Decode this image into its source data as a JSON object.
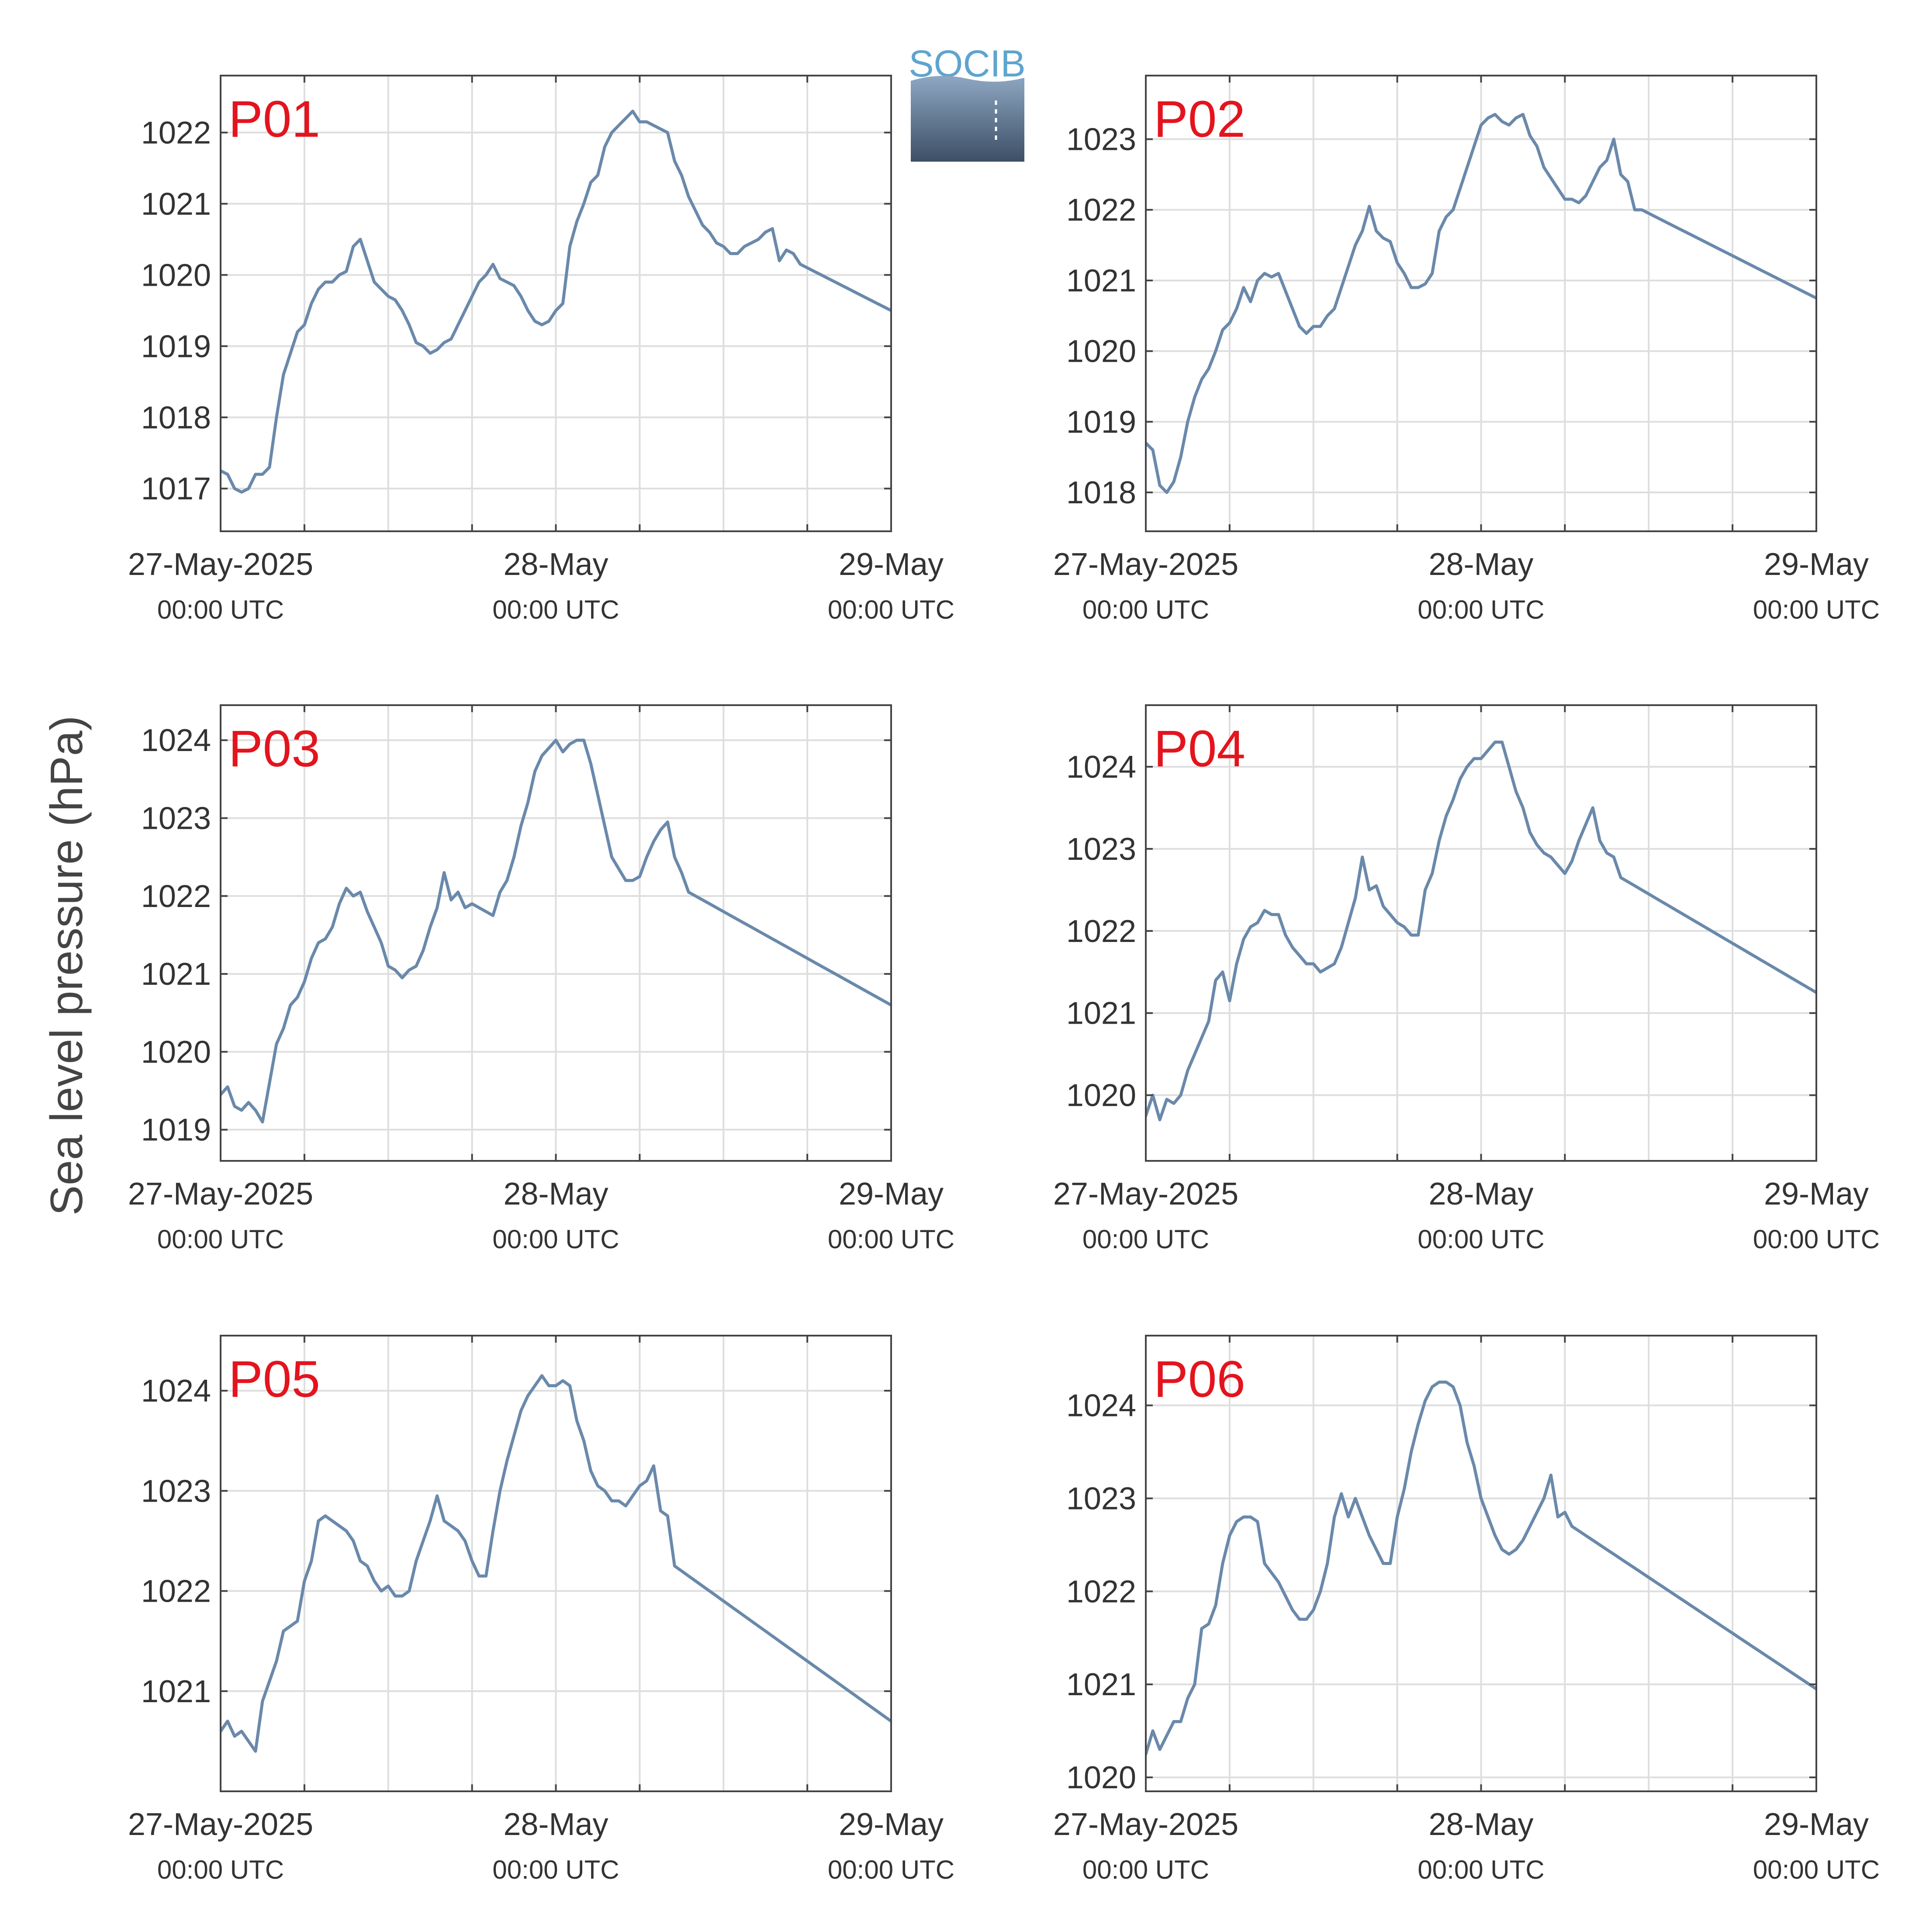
{
  "figure": {
    "ylabel": "Sea level pressure (hPa)",
    "logo_text": "SOCIB",
    "line_color": "#6a89ab",
    "label_color": "#e3141e",
    "x_ticks": [
      {
        "x": 0,
        "main": "27-May-2025",
        "sub": "00:00 UTC"
      },
      {
        "x": 24,
        "main": "28-May",
        "sub": "00:00 UTC"
      },
      {
        "x": 48,
        "main": "29-May",
        "sub": "00:00 UTC"
      }
    ]
  },
  "chart_data": [
    {
      "type": "line",
      "label": "P01",
      "xlim": [
        0,
        48
      ],
      "ylim": [
        1016.4,
        1022.8
      ],
      "yticks": [
        1017,
        1018,
        1019,
        1020,
        1021,
        1022
      ],
      "x": [
        0,
        0.5,
        1,
        1.5,
        2,
        2.5,
        3,
        3.5,
        4,
        4.5,
        5,
        5.5,
        6,
        6.5,
        7,
        7.5,
        8,
        8.5,
        9,
        9.5,
        10,
        10.5,
        11,
        11.5,
        12,
        12.5,
        13,
        13.5,
        14,
        14.5,
        15,
        15.5,
        16,
        16.5,
        17,
        17.5,
        18,
        18.5,
        19,
        19.5,
        20,
        20.5,
        21,
        21.5,
        22,
        22.5,
        23,
        23.5,
        24,
        24.5,
        25,
        25.5,
        26,
        26.5,
        27,
        27.5,
        28,
        28.5,
        29,
        29.5,
        30,
        30.5,
        31,
        31.5,
        32,
        32.5,
        33,
        33.5,
        34,
        34.5,
        35,
        35.5,
        36,
        36.5,
        37,
        37.5,
        38,
        38.5,
        39,
        39.5,
        40,
        40.5,
        41,
        41.5,
        42,
        42.5,
        43,
        43.5,
        44,
        44.5,
        45,
        45.5,
        46,
        46.5,
        47,
        47.5,
        48
      ],
      "y": [
        1017.25,
        1017.2,
        1017.0,
        1016.95,
        1017.0,
        1017.2,
        1017.2,
        1017.3,
        1018.0,
        1018.6,
        1018.9,
        1019.2,
        1019.3,
        1019.6,
        1019.8,
        1019.9,
        1019.9,
        1020.0,
        1020.05,
        1020.4,
        1020.5,
        1020.2,
        1019.9,
        1019.8,
        1019.7,
        1019.65,
        1019.5,
        1019.3,
        1019.05,
        1019.0,
        1018.9,
        1018.95,
        1019.05,
        1019.1,
        1019.3,
        1019.5,
        1019.7,
        1019.9,
        1020.0,
        1020.15,
        1019.95,
        1019.9,
        1019.85,
        1019.7,
        1019.5,
        1019.35,
        1019.3,
        1019.35,
        1019.5,
        1019.6,
        1020.4,
        1020.75,
        1021.0,
        1021.3,
        1021.4,
        1021.8,
        1022.0,
        1022.1,
        1022.2,
        1022.3,
        1022.15,
        1022.15,
        1022.1,
        1022.05,
        1022.0,
        1021.6,
        1021.4,
        1021.1,
        1020.9,
        1020.7,
        1020.6,
        1020.45,
        1020.4,
        1020.3,
        1020.3,
        1020.4,
        1020.45,
        1020.5,
        1020.6,
        1020.65,
        1020.2,
        1020.35,
        1020.3,
        1020.15,
        1020.1,
        1020.05,
        1020.0,
        1019.95,
        1019.9,
        1019.85,
        1019.8,
        1019.75,
        1019.7,
        1019.65,
        1019.6,
        1019.55,
        1019.5
      ]
    },
    {
      "type": "line",
      "label": "P02",
      "xlim": [
        0,
        48
      ],
      "ylim": [
        1017.45,
        1023.9
      ],
      "yticks": [
        1018,
        1019,
        1020,
        1021,
        1022,
        1023
      ],
      "x": [
        0,
        0.5,
        1,
        1.5,
        2,
        2.5,
        3,
        3.5,
        4,
        4.5,
        5,
        5.5,
        6,
        6.5,
        7,
        7.5,
        8,
        8.5,
        9,
        9.5,
        10,
        10.5,
        11,
        11.5,
        12,
        12.5,
        13,
        13.5,
        14,
        14.5,
        15,
        15.5,
        16,
        16.5,
        17,
        17.5,
        18,
        18.5,
        19,
        19.5,
        20,
        20.5,
        21,
        21.5,
        22,
        22.5,
        23,
        23.5,
        24,
        24.5,
        25,
        25.5,
        26,
        26.5,
        27,
        27.5,
        28,
        28.5,
        29,
        29.5,
        30,
        30.5,
        31,
        31.5,
        32,
        32.5,
        33,
        33.5,
        34,
        34.5,
        35,
        35.5,
        36,
        36.5,
        37,
        37.5,
        38,
        38.5,
        39,
        39.5,
        40,
        40.5,
        41,
        41.5,
        42,
        42.5,
        43,
        43.5,
        44,
        44.5,
        45,
        45.5,
        46,
        46.5,
        47,
        47.5,
        48
      ],
      "y": [
        1018.7,
        1018.6,
        1018.1,
        1018.0,
        1018.15,
        1018.5,
        1019.0,
        1019.35,
        1019.6,
        1019.75,
        1020.0,
        1020.3,
        1020.4,
        1020.6,
        1020.9,
        1020.7,
        1021.0,
        1021.1,
        1021.05,
        1021.1,
        1020.85,
        1020.6,
        1020.35,
        1020.25,
        1020.35,
        1020.35,
        1020.5,
        1020.6,
        1020.9,
        1021.2,
        1021.5,
        1021.7,
        1022.05,
        1021.7,
        1021.6,
        1021.55,
        1021.25,
        1021.1,
        1020.9,
        1020.9,
        1020.95,
        1021.1,
        1021.7,
        1021.9,
        1022.0,
        1022.3,
        1022.6,
        1022.9,
        1023.2,
        1023.3,
        1023.35,
        1023.25,
        1023.2,
        1023.3,
        1023.35,
        1023.05,
        1022.9,
        1022.6,
        1022.45,
        1022.3,
        1022.15,
        1022.15,
        1022.1,
        1022.2,
        1022.4,
        1022.6,
        1022.7,
        1023.0,
        1022.5,
        1022.4,
        1022.0,
        1022.0,
        1021.95,
        1021.9,
        1021.85,
        1021.8,
        1021.75,
        1021.7,
        1021.65,
        1021.6,
        1021.55,
        1021.5,
        1021.45,
        1021.4,
        1021.35,
        1021.3,
        1021.25,
        1021.2,
        1021.15,
        1021.1,
        1021.05,
        1021.0,
        1020.95,
        1020.9,
        1020.85,
        1020.8,
        1020.75
      ]
    },
    {
      "type": "line",
      "label": "P03",
      "xlim": [
        0,
        48
      ],
      "ylim": [
        1018.6,
        1024.45
      ],
      "yticks": [
        1019,
        1020,
        1021,
        1022,
        1023,
        1024
      ],
      "x": [
        0,
        0.5,
        1,
        1.5,
        2,
        2.5,
        3,
        3.5,
        4,
        4.5,
        5,
        5.5,
        6,
        6.5,
        7,
        7.5,
        8,
        8.5,
        9,
        9.5,
        10,
        10.5,
        11,
        11.5,
        12,
        12.5,
        13,
        13.5,
        14,
        14.5,
        15,
        15.5,
        16,
        16.5,
        17,
        17.5,
        18,
        18.5,
        19,
        19.5,
        20,
        20.5,
        21,
        21.5,
        22,
        22.5,
        23,
        23.5,
        24,
        24.5,
        25,
        25.5,
        26,
        26.5,
        27,
        27.5,
        28,
        28.5,
        29,
        29.5,
        30,
        30.5,
        31,
        31.5,
        32,
        32.5,
        33,
        33.5,
        34,
        34.5,
        35,
        35.5,
        36,
        36.5,
        37,
        37.5,
        38,
        38.5,
        39,
        39.5,
        40,
        40.5,
        41,
        41.5,
        42,
        42.5,
        43,
        43.5,
        44,
        44.5,
        45,
        45.5,
        46,
        46.5,
        47,
        47.5,
        48
      ],
      "y": [
        1019.45,
        1019.55,
        1019.3,
        1019.25,
        1019.35,
        1019.25,
        1019.1,
        1019.6,
        1020.1,
        1020.3,
        1020.6,
        1020.7,
        1020.9,
        1021.2,
        1021.4,
        1021.45,
        1021.6,
        1021.9,
        1022.1,
        1022.0,
        1022.05,
        1021.8,
        1021.6,
        1021.4,
        1021.1,
        1021.05,
        1020.95,
        1021.05,
        1021.1,
        1021.3,
        1021.6,
        1021.85,
        1022.3,
        1021.95,
        1022.05,
        1021.85,
        1021.9,
        1021.85,
        1021.8,
        1021.75,
        1022.05,
        1022.2,
        1022.5,
        1022.9,
        1023.2,
        1023.6,
        1023.8,
        1023.9,
        1024.0,
        1023.85,
        1023.95,
        1024.0,
        1024.0,
        1023.7,
        1023.3,
        1022.9,
        1022.5,
        1022.35,
        1022.2,
        1022.2,
        1022.25,
        1022.5,
        1022.7,
        1022.85,
        1022.95,
        1022.5,
        1022.3,
        1022.05,
        1022.0,
        1021.95,
        1021.9,
        1021.85,
        1021.8,
        1021.75,
        1021.7,
        1021.65,
        1021.6,
        1021.55,
        1021.5,
        1021.45,
        1021.4,
        1021.35,
        1021.3,
        1021.25,
        1021.2,
        1021.15,
        1021.1,
        1021.05,
        1021.0,
        1020.95,
        1020.9,
        1020.85,
        1020.8,
        1020.75,
        1020.7,
        1020.65,
        1020.6
      ]
    },
    {
      "type": "line",
      "label": "P04",
      "xlim": [
        0,
        48
      ],
      "ylim": [
        1019.2,
        1024.75
      ],
      "yticks": [
        1020,
        1021,
        1022,
        1023,
        1024
      ],
      "x": [
        0,
        0.5,
        1,
        1.5,
        2,
        2.5,
        3,
        3.5,
        4,
        4.5,
        5,
        5.5,
        6,
        6.5,
        7,
        7.5,
        8,
        8.5,
        9,
        9.5,
        10,
        10.5,
        11,
        11.5,
        12,
        12.5,
        13,
        13.5,
        14,
        14.5,
        15,
        15.5,
        16,
        16.5,
        17,
        17.5,
        18,
        18.5,
        19,
        19.5,
        20,
        20.5,
        21,
        21.5,
        22,
        22.5,
        23,
        23.5,
        24,
        24.5,
        25,
        25.5,
        26,
        26.5,
        27,
        27.5,
        28,
        28.5,
        29,
        29.5,
        30,
        30.5,
        31,
        31.5,
        32,
        32.5,
        33,
        33.5,
        34,
        34.5,
        35,
        35.5,
        36,
        36.5,
        37,
        37.5,
        38,
        38.5,
        39,
        39.5,
        40,
        40.5,
        41,
        41.5,
        42,
        42.5,
        43,
        43.5,
        44,
        44.5,
        45,
        45.5,
        46,
        46.5,
        47,
        47.5,
        48
      ],
      "y": [
        1019.75,
        1020.0,
        1019.7,
        1019.95,
        1019.9,
        1020.0,
        1020.3,
        1020.5,
        1020.7,
        1020.9,
        1021.4,
        1021.5,
        1021.15,
        1021.6,
        1021.9,
        1022.05,
        1022.1,
        1022.25,
        1022.2,
        1022.2,
        1021.95,
        1021.8,
        1021.7,
        1021.6,
        1021.6,
        1021.5,
        1021.55,
        1021.6,
        1021.8,
        1022.1,
        1022.4,
        1022.9,
        1022.5,
        1022.55,
        1022.3,
        1022.2,
        1022.1,
        1022.05,
        1021.95,
        1021.95,
        1022.5,
        1022.7,
        1023.1,
        1023.4,
        1023.6,
        1023.85,
        1024.0,
        1024.1,
        1024.1,
        1024.2,
        1024.3,
        1024.3,
        1024.0,
        1023.7,
        1023.5,
        1023.2,
        1023.05,
        1022.95,
        1022.9,
        1022.8,
        1022.7,
        1022.85,
        1023.1,
        1023.3,
        1023.5,
        1023.1,
        1022.95,
        1022.9,
        1022.65,
        1022.6,
        1022.55,
        1022.5,
        1022.45,
        1022.4,
        1022.35,
        1022.3,
        1022.25,
        1022.2,
        1022.15,
        1022.1,
        1022.05,
        1022.0,
        1021.95,
        1021.9,
        1021.85,
        1021.8,
        1021.75,
        1021.7,
        1021.65,
        1021.6,
        1021.55,
        1021.5,
        1021.45,
        1021.4,
        1021.35,
        1021.3,
        1021.25
      ]
    },
    {
      "type": "line",
      "label": "P05",
      "xlim": [
        0,
        48
      ],
      "ylim": [
        1020.0,
        1024.55
      ],
      "yticks": [
        1021,
        1022,
        1023,
        1024
      ],
      "x": [
        0,
        0.5,
        1,
        1.5,
        2,
        2.5,
        3,
        3.5,
        4,
        4.5,
        5,
        5.5,
        6,
        6.5,
        7,
        7.5,
        8,
        8.5,
        9,
        9.5,
        10,
        10.5,
        11,
        11.5,
        12,
        12.5,
        13,
        13.5,
        14,
        14.5,
        15,
        15.5,
        16,
        16.5,
        17,
        17.5,
        18,
        18.5,
        19,
        19.5,
        20,
        20.5,
        21,
        21.5,
        22,
        22.5,
        23,
        23.5,
        24,
        24.5,
        25,
        25.5,
        26,
        26.5,
        27,
        27.5,
        28,
        28.5,
        29,
        29.5,
        30,
        30.5,
        31,
        31.5,
        32,
        32.5,
        33,
        33.5,
        34,
        34.5,
        35,
        35.5,
        36,
        36.5,
        37,
        37.5,
        38,
        38.5,
        39,
        39.5,
        40,
        40.5,
        41,
        41.5,
        42,
        42.5,
        43,
        43.5,
        44,
        44.5,
        45,
        45.5,
        46,
        46.5,
        47,
        47.5,
        48
      ],
      "y": [
        1020.6,
        1020.7,
        1020.55,
        1020.6,
        1020.5,
        1020.4,
        1020.9,
        1021.1,
        1021.3,
        1021.6,
        1021.65,
        1021.7,
        1022.1,
        1022.3,
        1022.7,
        1022.75,
        1022.7,
        1022.65,
        1022.6,
        1022.5,
        1022.3,
        1022.25,
        1022.1,
        1022.0,
        1022.05,
        1021.95,
        1021.95,
        1022.0,
        1022.3,
        1022.5,
        1022.7,
        1022.95,
        1022.7,
        1022.65,
        1022.6,
        1022.5,
        1022.3,
        1022.15,
        1022.15,
        1022.6,
        1023.0,
        1023.3,
        1023.55,
        1023.8,
        1023.95,
        1024.05,
        1024.15,
        1024.05,
        1024.05,
        1024.1,
        1024.05,
        1023.7,
        1023.5,
        1023.2,
        1023.05,
        1023.0,
        1022.9,
        1022.9,
        1022.85,
        1022.95,
        1023.05,
        1023.1,
        1023.25,
        1022.8,
        1022.75,
        1022.25,
        1022.2,
        1022.15,
        1022.1,
        1022.05,
        1022.0,
        1021.95,
        1021.9,
        1021.85,
        1021.8,
        1021.75,
        1021.7,
        1021.65,
        1021.6,
        1021.55,
        1021.5,
        1021.45,
        1021.4,
        1021.35,
        1021.3,
        1021.25,
        1021.2,
        1021.15,
        1021.1,
        1021.05,
        1021.0,
        1020.95,
        1020.9,
        1020.85,
        1020.8,
        1020.75,
        1020.7
      ]
    },
    {
      "type": "line",
      "label": "P06",
      "xlim": [
        0,
        48
      ],
      "ylim": [
        1019.85,
        1024.75
      ],
      "yticks": [
        1020,
        1021,
        1022,
        1023,
        1024
      ],
      "x": [
        0,
        0.5,
        1,
        1.5,
        2,
        2.5,
        3,
        3.5,
        4,
        4.5,
        5,
        5.5,
        6,
        6.5,
        7,
        7.5,
        8,
        8.5,
        9,
        9.5,
        10,
        10.5,
        11,
        11.5,
        12,
        12.5,
        13,
        13.5,
        14,
        14.5,
        15,
        15.5,
        16,
        16.5,
        17,
        17.5,
        18,
        18.5,
        19,
        19.5,
        20,
        20.5,
        21,
        21.5,
        22,
        22.5,
        23,
        23.5,
        24,
        24.5,
        25,
        25.5,
        26,
        26.5,
        27,
        27.5,
        28,
        28.5,
        29,
        29.5,
        30,
        30.5,
        31,
        31.5,
        32,
        32.5,
        33,
        33.5,
        34,
        34.5,
        35,
        35.5,
        36,
        36.5,
        37,
        37.5,
        38,
        38.5,
        39,
        39.5,
        40,
        40.5,
        41,
        41.5,
        42,
        42.5,
        43,
        43.5,
        44,
        44.5,
        45,
        45.5,
        46,
        46.5,
        47,
        47.5,
        48
      ],
      "y": [
        1020.25,
        1020.5,
        1020.3,
        1020.45,
        1020.6,
        1020.6,
        1020.85,
        1021.0,
        1021.6,
        1021.65,
        1021.85,
        1022.3,
        1022.6,
        1022.75,
        1022.8,
        1022.8,
        1022.75,
        1022.3,
        1022.2,
        1022.1,
        1021.95,
        1021.8,
        1021.7,
        1021.7,
        1021.8,
        1022.0,
        1022.3,
        1022.8,
        1023.05,
        1022.8,
        1023.0,
        1022.8,
        1022.6,
        1022.45,
        1022.3,
        1022.3,
        1022.8,
        1023.1,
        1023.5,
        1023.8,
        1024.05,
        1024.2,
        1024.25,
        1024.25,
        1024.2,
        1024.0,
        1023.6,
        1023.35,
        1023.0,
        1022.8,
        1022.6,
        1022.45,
        1022.4,
        1022.45,
        1022.55,
        1022.7,
        1022.85,
        1023.0,
        1023.25,
        1022.8,
        1022.85,
        1022.7,
        1022.65,
        1022.6,
        1022.55,
        1022.5,
        1022.45,
        1022.4,
        1022.35,
        1022.3,
        1022.25,
        1022.2,
        1022.15,
        1022.1,
        1022.05,
        1022.0,
        1021.95,
        1021.9,
        1021.85,
        1021.8,
        1021.75,
        1021.7,
        1021.65,
        1021.6,
        1021.55,
        1021.5,
        1021.45,
        1021.4,
        1021.35,
        1021.3,
        1021.25,
        1021.2,
        1021.15,
        1021.1,
        1021.05,
        1021.0,
        1020.95
      ]
    }
  ]
}
